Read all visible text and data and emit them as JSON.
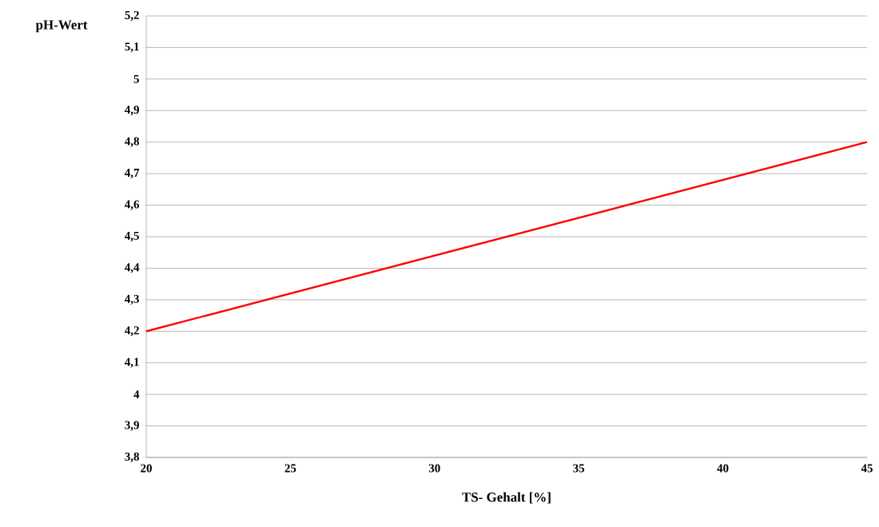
{
  "chart_data": {
    "type": "line",
    "xlabel": "TS- Gehalt [%]",
    "ylabel": "pH-Wert",
    "x": [
      20,
      45
    ],
    "values": [
      4.2,
      4.8
    ],
    "color": "#ff0000",
    "line_style": "solid",
    "xlim": [
      20,
      45
    ],
    "xticks": [
      20,
      25,
      30,
      35,
      40,
      45
    ],
    "ylim": [
      3.8,
      5.2
    ],
    "yticks": [
      {
        "value": 3.8,
        "label": "3,8"
      },
      {
        "value": 3.9,
        "label": "3,9"
      },
      4,
      {
        "value": 4.1,
        "label": "4,1"
      },
      {
        "value": 4.2,
        "label": "4,2"
      },
      {
        "value": 4.3,
        "label": "4,3"
      },
      {
        "value": 4.4,
        "label": "4,4"
      },
      {
        "value": 4.5,
        "label": "4,5"
      },
      {
        "value": 4.6,
        "label": "4,6"
      },
      {
        "value": 4.7,
        "label": "4,7"
      },
      {
        "value": 4.8,
        "label": "4,8"
      },
      {
        "value": 4.9,
        "label": "4,9"
      },
      5,
      {
        "value": 5.1,
        "label": "5,1"
      },
      {
        "value": 5.2,
        "label": "5,2"
      }
    ],
    "grid": "y"
  }
}
